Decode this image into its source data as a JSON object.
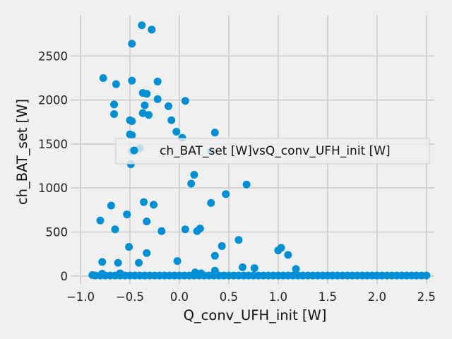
{
  "chart_data": {
    "type": "scatter",
    "title": "",
    "xlabel": "Q_conv_UFH_init [W]",
    "ylabel": "ch_BAT_set [W]",
    "xlim": [
      -1.1,
      2.58
    ],
    "ylim": [
      -90,
      2960
    ],
    "xticks": [
      -1.0,
      -0.5,
      0.0,
      0.5,
      1.0,
      1.5,
      2.0,
      2.5
    ],
    "xtick_labels": [
      "−1.0",
      "−0.5",
      "0.0",
      "0.5",
      "1.0",
      "1.5",
      "2.0",
      "2.5"
    ],
    "yticks": [
      0,
      500,
      1000,
      1500,
      2000,
      2500
    ],
    "ytick_labels": [
      "0",
      "500",
      "1000",
      "1500",
      "2000",
      "2500"
    ],
    "grid": true,
    "legend_position": "center-right",
    "color": "#008fd5",
    "series": [
      {
        "name": "ch_BAT_set [W]vsQ_conv_UFH_init [W]",
        "points": [
          [
            -0.38,
            2850
          ],
          [
            -0.28,
            2800
          ],
          [
            -0.48,
            2640
          ],
          [
            -0.77,
            2250
          ],
          [
            -0.48,
            2220
          ],
          [
            -0.22,
            2210
          ],
          [
            -0.64,
            2180
          ],
          [
            -0.37,
            2080
          ],
          [
            -0.33,
            2070
          ],
          [
            -0.22,
            2010
          ],
          [
            0.06,
            1990
          ],
          [
            -0.66,
            1950
          ],
          [
            -0.35,
            1940
          ],
          [
            -0.11,
            1930
          ],
          [
            -0.66,
            1840
          ],
          [
            -0.37,
            1850
          ],
          [
            -0.31,
            1830
          ],
          [
            -0.08,
            1770
          ],
          [
            -0.5,
            1770
          ],
          [
            -0.48,
            1760
          ],
          [
            -0.03,
            1640
          ],
          [
            0.36,
            1630
          ],
          [
            -0.5,
            1610
          ],
          [
            -0.48,
            1600
          ],
          [
            0.03,
            1570
          ],
          [
            -0.48,
            1420
          ],
          [
            0.32,
            1420
          ],
          [
            -0.4,
            1450
          ],
          [
            -0.49,
            1270
          ],
          [
            0.15,
            1150
          ],
          [
            0.12,
            1050
          ],
          [
            0.68,
            1040
          ],
          [
            0.47,
            930
          ],
          [
            -0.36,
            840
          ],
          [
            -0.69,
            800
          ],
          [
            -0.26,
            810
          ],
          [
            0.32,
            830
          ],
          [
            -0.53,
            700
          ],
          [
            -0.8,
            630
          ],
          [
            -0.33,
            620
          ],
          [
            -0.65,
            530
          ],
          [
            0.06,
            530
          ],
          [
            0.21,
            540
          ],
          [
            0.18,
            510
          ],
          [
            -0.18,
            510
          ],
          [
            0.6,
            410
          ],
          [
            0.43,
            340
          ],
          [
            -0.51,
            330
          ],
          [
            1.03,
            320
          ],
          [
            1.0,
            290
          ],
          [
            -0.33,
            260
          ],
          [
            1.1,
            240
          ],
          [
            0.36,
            230
          ],
          [
            -0.02,
            170
          ],
          [
            -0.78,
            160
          ],
          [
            -0.62,
            150
          ],
          [
            -0.41,
            150
          ],
          [
            0.64,
            100
          ],
          [
            0.76,
            90
          ],
          [
            1.18,
            80
          ],
          [
            0.36,
            60
          ],
          [
            0.16,
            40
          ],
          [
            0.22,
            30
          ],
          [
            -0.6,
            30
          ],
          [
            -0.78,
            25
          ],
          [
            -0.88,
            10
          ],
          [
            -0.85,
            5
          ],
          [
            -0.8,
            5
          ],
          [
            -0.75,
            5
          ],
          [
            -0.7,
            5
          ],
          [
            -0.65,
            5
          ],
          [
            -0.6,
            5
          ],
          [
            -0.55,
            5
          ],
          [
            -0.5,
            5
          ],
          [
            -0.45,
            5
          ],
          [
            -0.4,
            5
          ],
          [
            -0.35,
            5
          ],
          [
            -0.3,
            5
          ],
          [
            -0.25,
            5
          ],
          [
            -0.2,
            5
          ],
          [
            -0.15,
            5
          ],
          [
            -0.1,
            5
          ],
          [
            -0.05,
            5
          ],
          [
            0.0,
            5
          ],
          [
            0.05,
            5
          ],
          [
            0.1,
            5
          ],
          [
            0.15,
            5
          ],
          [
            0.2,
            5
          ],
          [
            0.25,
            5
          ],
          [
            0.3,
            5
          ],
          [
            0.35,
            5
          ],
          [
            0.4,
            5
          ],
          [
            0.45,
            5
          ],
          [
            0.5,
            5
          ],
          [
            0.55,
            5
          ],
          [
            0.6,
            5
          ],
          [
            0.65,
            5
          ],
          [
            0.7,
            5
          ],
          [
            0.75,
            5
          ],
          [
            0.8,
            5
          ],
          [
            0.85,
            5
          ],
          [
            0.9,
            5
          ],
          [
            0.95,
            5
          ],
          [
            1.0,
            5
          ],
          [
            1.05,
            5
          ],
          [
            1.1,
            5
          ],
          [
            1.15,
            5
          ],
          [
            1.2,
            5
          ],
          [
            1.25,
            5
          ],
          [
            1.3,
            5
          ],
          [
            1.35,
            5
          ],
          [
            1.4,
            5
          ],
          [
            1.45,
            5
          ],
          [
            1.5,
            5
          ],
          [
            1.55,
            5
          ],
          [
            1.6,
            5
          ],
          [
            1.65,
            5
          ],
          [
            1.7,
            5
          ],
          [
            1.75,
            5
          ],
          [
            1.8,
            5
          ],
          [
            1.85,
            5
          ],
          [
            1.9,
            5
          ],
          [
            1.95,
            5
          ],
          [
            2.0,
            5
          ],
          [
            2.05,
            5
          ],
          [
            2.1,
            5
          ],
          [
            2.15,
            5
          ],
          [
            2.2,
            5
          ],
          [
            2.25,
            5
          ],
          [
            2.3,
            5
          ],
          [
            2.35,
            5
          ],
          [
            2.4,
            5
          ],
          [
            2.45,
            5
          ],
          [
            2.5,
            5
          ]
        ]
      }
    ]
  }
}
